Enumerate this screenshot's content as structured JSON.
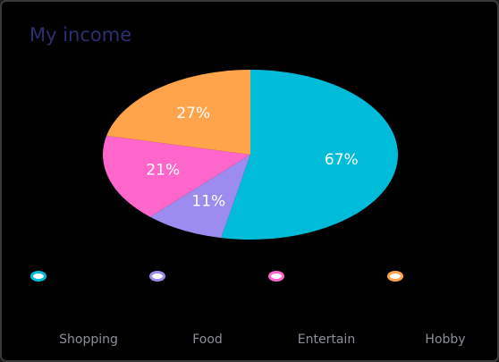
{
  "chart_data": {
    "type": "pie",
    "title": "My income",
    "categories": [
      "Shopping",
      "Food",
      "Entertain",
      "Hobby"
    ],
    "values": [
      67,
      11,
      21,
      27
    ],
    "value_labels": [
      "67%",
      "11%",
      "21%",
      "27%"
    ],
    "colors": [
      "#00bcd8",
      "#9c8cf0",
      "#ff66cc",
      "#ffa44a"
    ],
    "legend": "bottom"
  }
}
